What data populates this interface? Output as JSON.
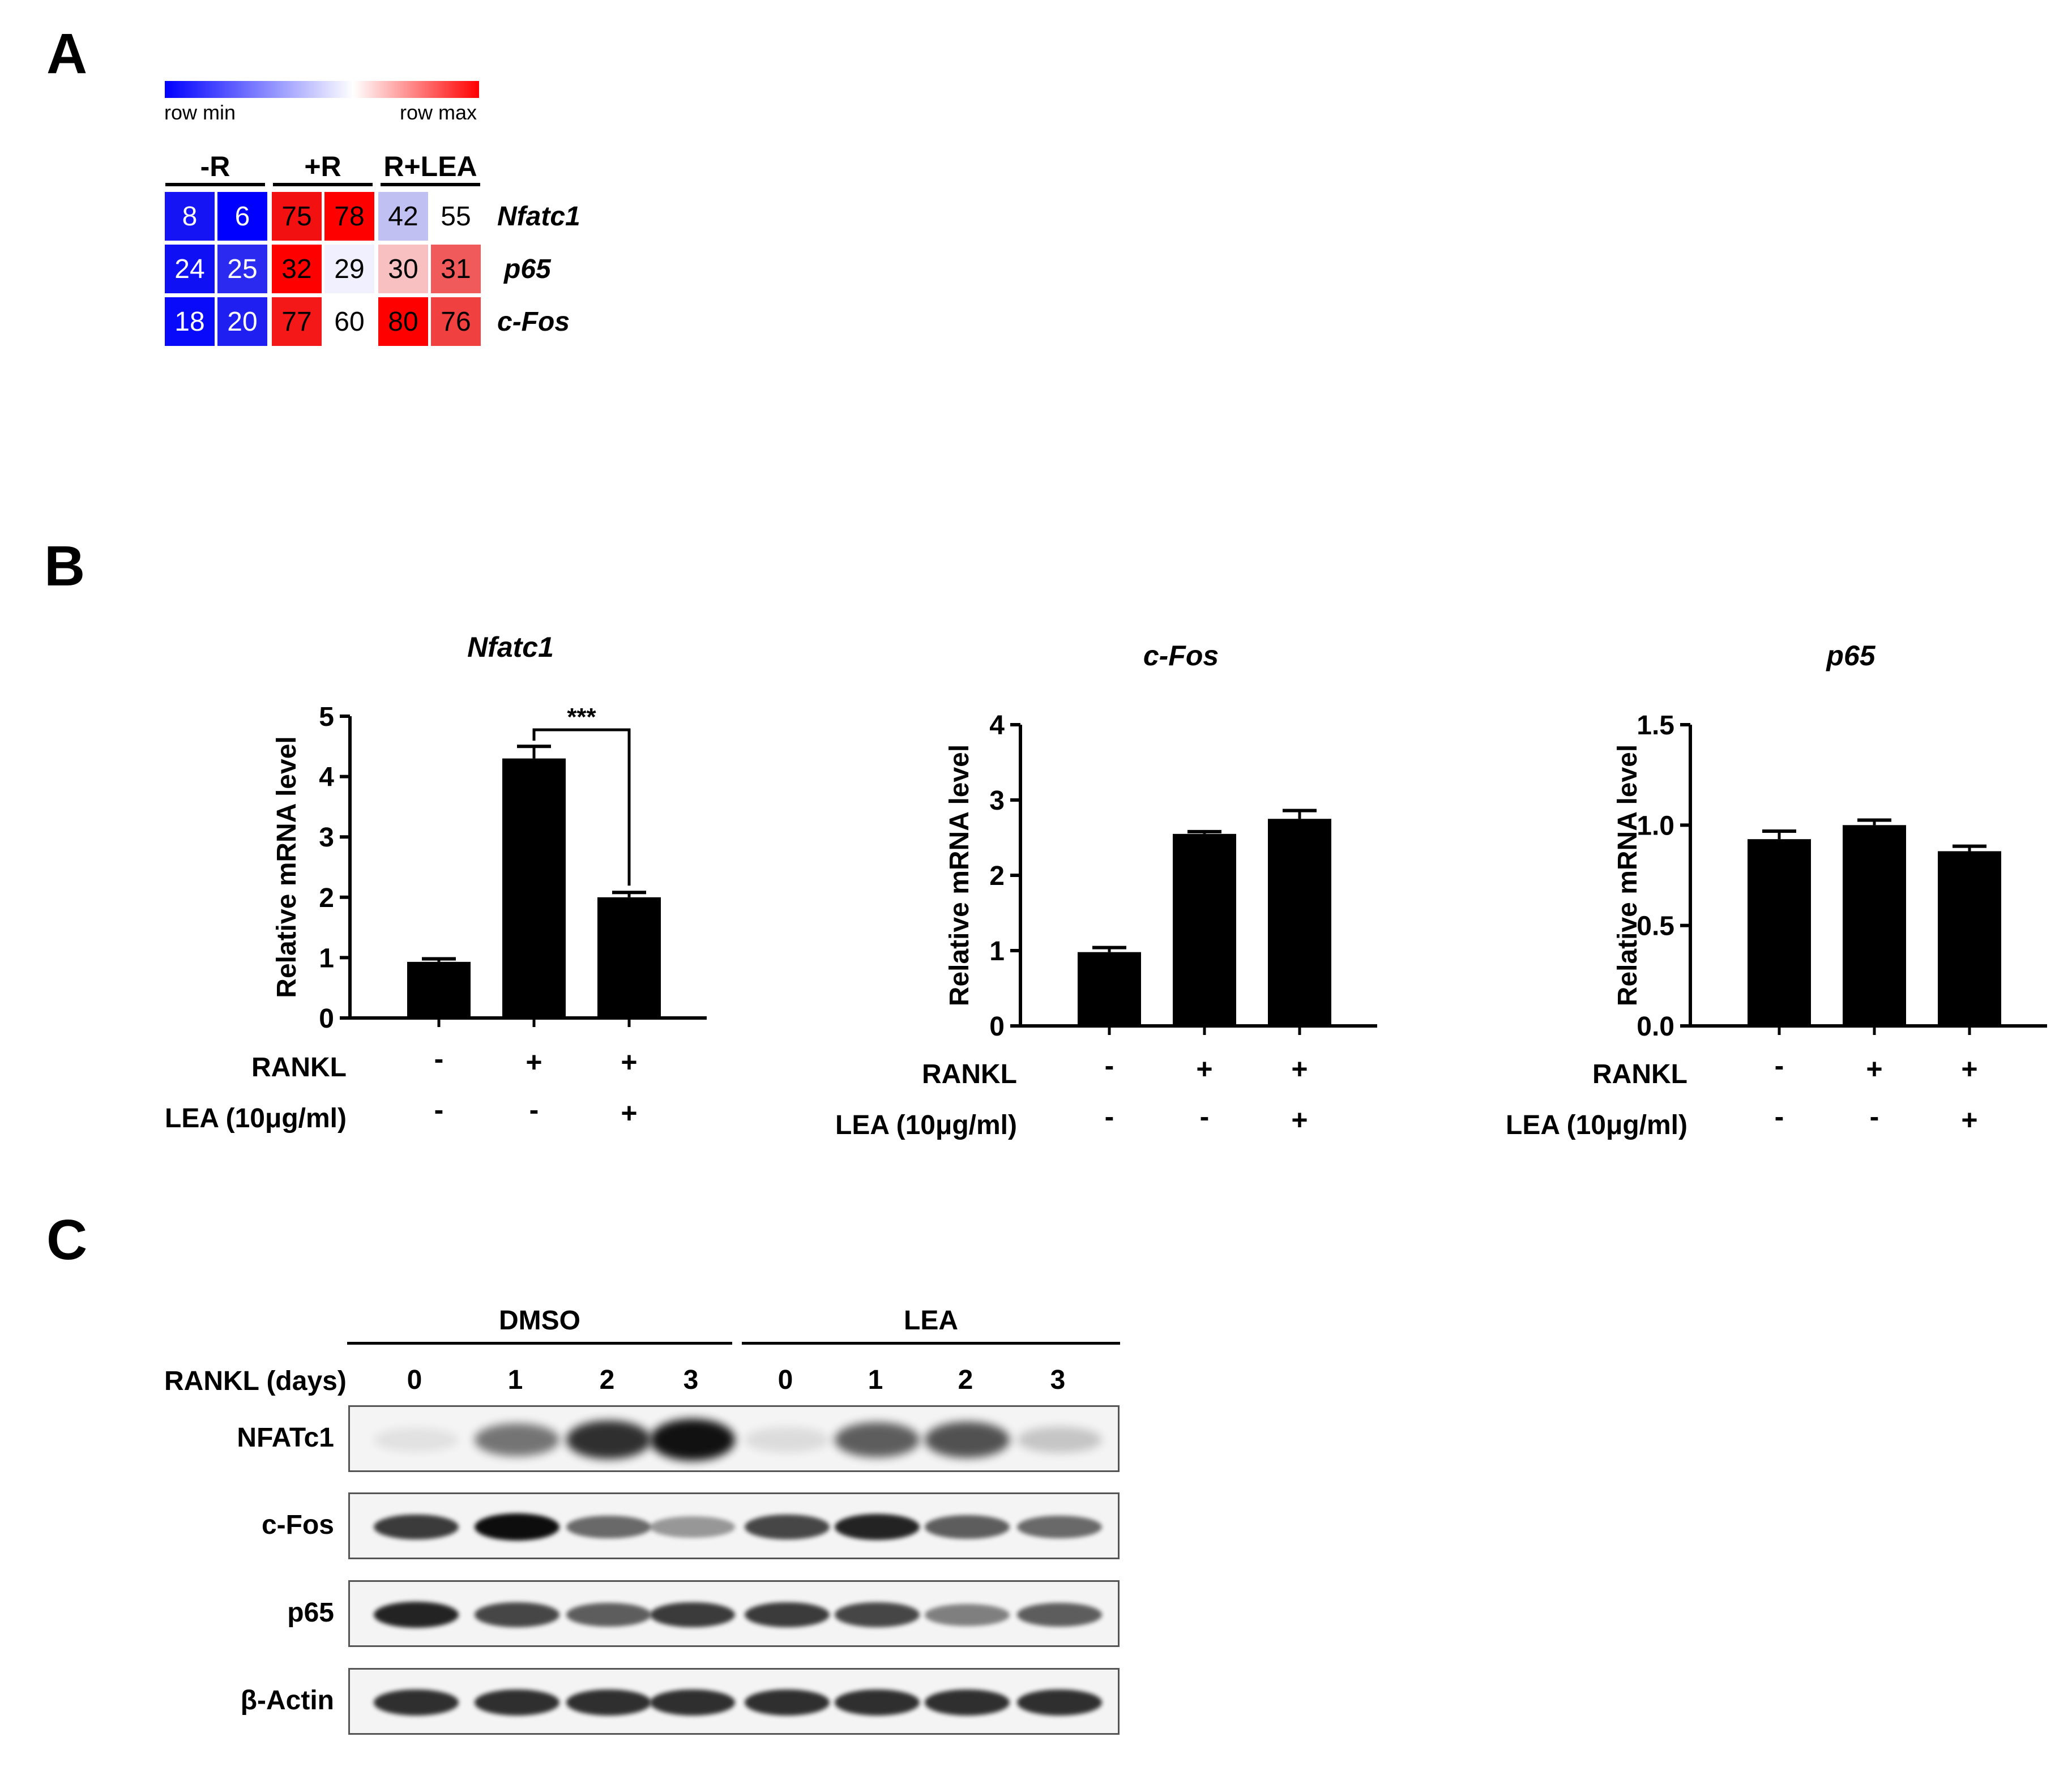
{
  "panels": {
    "A": "A",
    "B": "B",
    "C": "C"
  },
  "heatmap": {
    "colorbar": {
      "min_label": "row min",
      "max_label": "row max"
    },
    "groups": [
      "-R",
      "+R",
      "R+LEA"
    ],
    "genes": [
      "Nfatc1",
      "p65",
      "c-Fos"
    ],
    "values": [
      [
        8,
        6,
        75,
        78,
        42,
        55
      ],
      [
        24,
        25,
        32,
        29,
        30,
        31
      ],
      [
        18,
        20,
        77,
        60,
        80,
        76
      ]
    ],
    "cell_colors": [
      [
        "#1414f5",
        "#0000ff",
        "#f21010",
        "#ff0000",
        "#c0c0f2",
        "#ffffff"
      ],
      [
        "#1010f5",
        "#2a2af0",
        "#ff0000",
        "#f0f0ff",
        "#f8c0c0",
        "#f05a5a"
      ],
      [
        "#0a0afa",
        "#1f1ff2",
        "#f51818",
        "#ffffff",
        "#ff0000",
        "#f04040"
      ]
    ],
    "text_colors": [
      [
        "#ffffff",
        "#ffffff",
        "#000000",
        "#000000",
        "#000000",
        "#000000"
      ],
      [
        "#ffffff",
        "#ffffff",
        "#000000",
        "#000000",
        "#000000",
        "#000000"
      ],
      [
        "#ffffff",
        "#ffffff",
        "#000000",
        "#000000",
        "#000000",
        "#000000"
      ]
    ]
  },
  "chart_data": [
    {
      "type": "bar",
      "title": "Nfatc1",
      "ylabel": "Relative mRNA level",
      "categories": [
        "RANKL -, LEA -",
        "RANKL +, LEA -",
        "RANKL +, LEA +"
      ],
      "values": [
        0.93,
        4.3,
        2.0
      ],
      "errors": [
        0.05,
        0.2,
        0.08
      ],
      "ylim": [
        0,
        5
      ],
      "yticks": [
        "0",
        "1",
        "2",
        "3",
        "4",
        "5"
      ],
      "significance": {
        "label": "***",
        "between": [
          1,
          2
        ]
      },
      "rows": [
        {
          "label": "RANKL",
          "signs": [
            "-",
            "+",
            "+"
          ]
        },
        {
          "label": "LEA (10μg/ml)",
          "signs": [
            "-",
            "-",
            "+"
          ]
        }
      ]
    },
    {
      "type": "bar",
      "title": "c-Fos",
      "ylabel": "Relative mRNA level",
      "categories": [
        "RANKL -, LEA -",
        "RANKL +, LEA -",
        "RANKL +, LEA +"
      ],
      "values": [
        0.98,
        2.55,
        2.75
      ],
      "errors": [
        0.06,
        0.03,
        0.11
      ],
      "ylim": [
        0,
        4
      ],
      "yticks": [
        "0",
        "1",
        "2",
        "3",
        "4"
      ],
      "rows": [
        {
          "label": "RANKL",
          "signs": [
            "-",
            "+",
            "+"
          ]
        },
        {
          "label": "LEA (10μg/ml)",
          "signs": [
            "-",
            "-",
            "+"
          ]
        }
      ]
    },
    {
      "type": "bar",
      "title": "p65",
      "ylabel": "Relative mRNA level",
      "categories": [
        "RANKL -, LEA -",
        "RANKL +, LEA -",
        "RANKL +, LEA +"
      ],
      "values": [
        0.93,
        1.0,
        0.87
      ],
      "errors": [
        0.04,
        0.025,
        0.025
      ],
      "ylim": [
        0,
        1.5
      ],
      "yticks": [
        "0.0",
        "0.5",
        "1.0",
        "1.5"
      ],
      "rows": [
        {
          "label": "RANKL",
          "signs": [
            "-",
            "+",
            "+"
          ]
        },
        {
          "label": "LEA (10μg/ml)",
          "signs": [
            "-",
            "-",
            "+"
          ]
        }
      ]
    }
  ],
  "western": {
    "groups": [
      "DMSO",
      "LEA"
    ],
    "row_header": "RANKL (days)",
    "lanes": [
      "0",
      "1",
      "2",
      "3",
      "0",
      "1",
      "2",
      "3"
    ],
    "blots": [
      {
        "label": "NFATc1",
        "intensity": [
          0.05,
          0.55,
          0.85,
          0.98,
          0.1,
          0.65,
          0.7,
          0.2
        ]
      },
      {
        "label": "c-Fos",
        "intensity": [
          0.8,
          1.0,
          0.6,
          0.4,
          0.75,
          0.9,
          0.65,
          0.6
        ]
      },
      {
        "label": "p65",
        "intensity": [
          0.9,
          0.75,
          0.65,
          0.8,
          0.8,
          0.75,
          0.5,
          0.65
        ]
      },
      {
        "label": "β-Actin",
        "intensity": [
          0.85,
          0.85,
          0.85,
          0.85,
          0.85,
          0.85,
          0.85,
          0.85
        ]
      }
    ]
  }
}
